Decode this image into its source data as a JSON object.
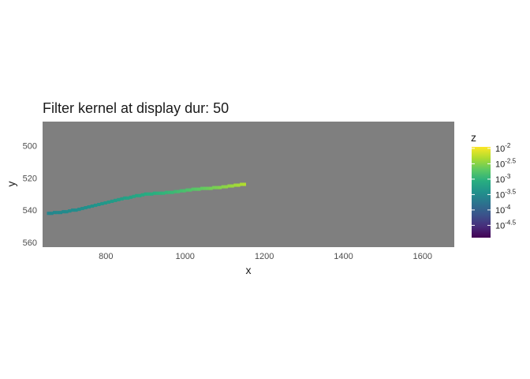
{
  "chart_data": {
    "type": "heatmap",
    "title": "Filter kernel at display dur: 50",
    "xlabel": "x",
    "ylabel": "y",
    "xlim": [
      640,
      1680
    ],
    "ylim": [
      563,
      485
    ],
    "y_reversed": true,
    "x_ticks": [
      800,
      1000,
      1200,
      1400,
      1600
    ],
    "y_ticks": [
      500,
      520,
      540,
      560
    ],
    "panel_background": "#7f7f7f",
    "grid": false,
    "colorscale": "viridis",
    "legend": {
      "title": "z",
      "position": "right",
      "log_scale": true,
      "range_log10": [
        -4.9,
        -1.95
      ],
      "tick_base": "10",
      "tick_exponents": [
        "-2",
        "-2.5",
        "-3",
        "-3.5",
        "-4",
        "-4.5"
      ],
      "tick_values_log10": [
        -2,
        -2.5,
        -3,
        -3.5,
        -4,
        -4.5
      ]
    },
    "path": {
      "description_points": [
        {
          "x": 655,
          "y": 542,
          "z_log10": -3.55
        },
        {
          "x": 700,
          "y": 541,
          "z_log10": -3.5
        },
        {
          "x": 740,
          "y": 539,
          "z_log10": -3.45
        },
        {
          "x": 790,
          "y": 536,
          "z_log10": -3.35
        },
        {
          "x": 840,
          "y": 533,
          "z_log10": -3.25
        },
        {
          "x": 900,
          "y": 530,
          "z_log10": -3.1
        },
        {
          "x": 960,
          "y": 529,
          "z_log10": -2.95
        },
        {
          "x": 1020,
          "y": 527,
          "z_log10": -2.75
        },
        {
          "x": 1080,
          "y": 526,
          "z_log10": -2.55
        },
        {
          "x": 1150,
          "y": 524,
          "z_log10": -2.3
        }
      ],
      "cell_width_x": 8,
      "cell_height_y": 2
    }
  }
}
